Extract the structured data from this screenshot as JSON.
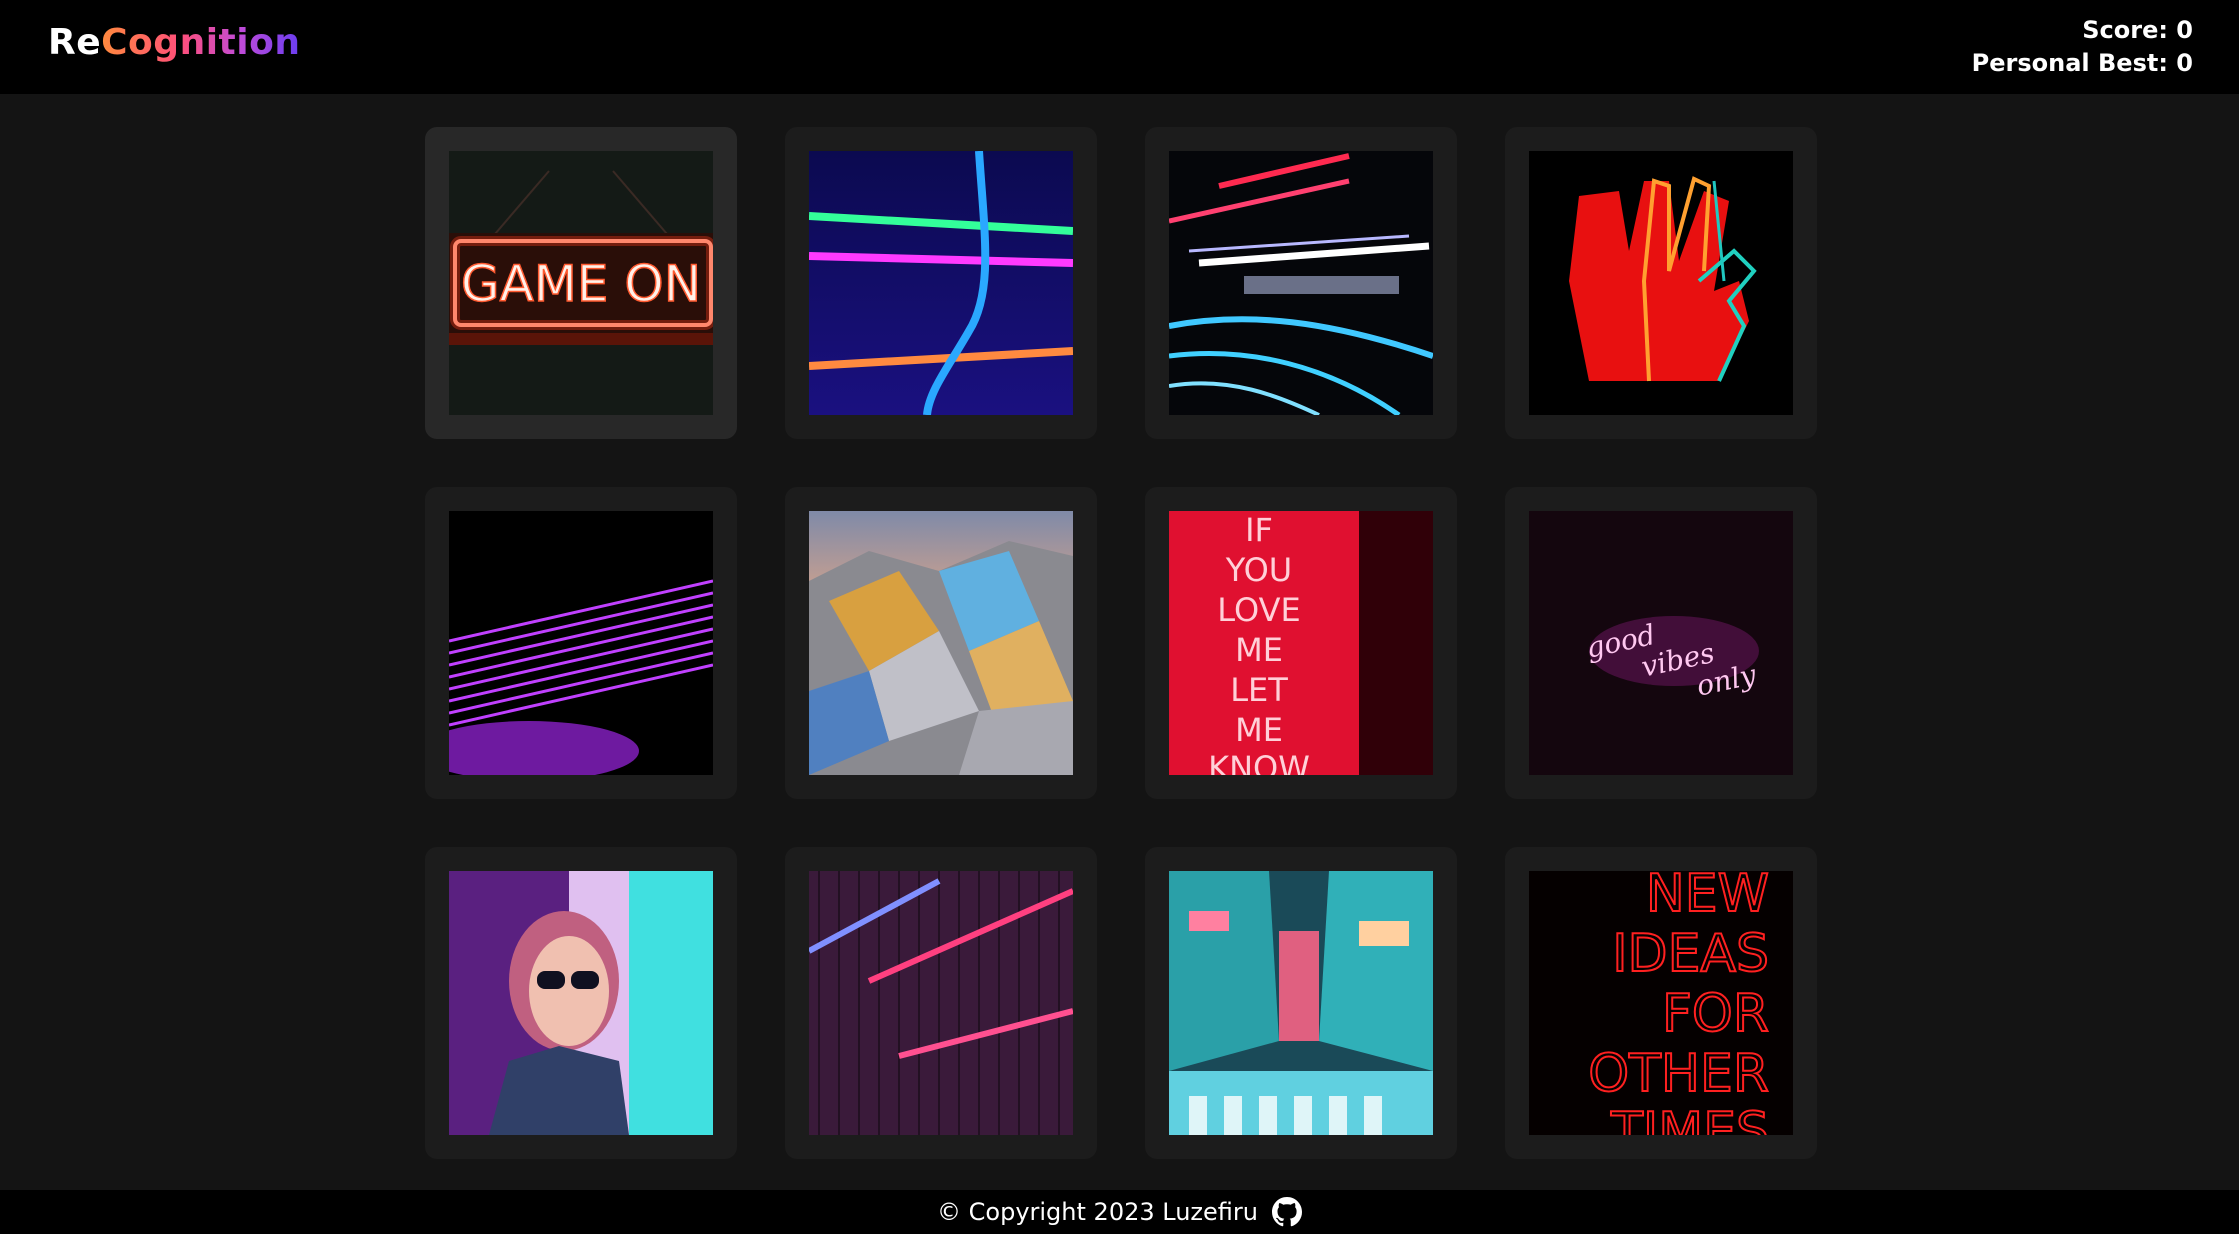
{
  "header": {
    "logo_prefix": "Re",
    "logo_suffix": "Cognition",
    "score_label": "Score: 0",
    "best_label": "Personal Best: 0"
  },
  "cards": [
    {
      "name": "game-on-neon-sign",
      "alt": "GAME ON"
    },
    {
      "name": "neon-tubes-lines",
      "alt": ""
    },
    {
      "name": "light-trails",
      "alt": ""
    },
    {
      "name": "neon-peace-hand",
      "alt": ""
    },
    {
      "name": "purple-light-streaks",
      "alt": ""
    },
    {
      "name": "holographic-foil",
      "alt": ""
    },
    {
      "name": "if-you-love-me-neon",
      "alt": "IF YOU LOVE ME LET ME KNOW"
    },
    {
      "name": "good-vibes-only-neon",
      "alt": "good vibes only"
    },
    {
      "name": "woman-neon-portrait",
      "alt": ""
    },
    {
      "name": "pink-blue-neon-wall",
      "alt": ""
    },
    {
      "name": "neon-city-street",
      "alt": ""
    },
    {
      "name": "new-ideas-neon",
      "alt": "NEW IDEAS FOR OTHER TIMES"
    }
  ],
  "footer": {
    "copyright": "© Copyright 2023 Luzefiru",
    "github_icon": "github-icon"
  },
  "colors": {
    "background": "#141414",
    "header": "#000000",
    "card": "#1c1c1c",
    "card_hover": "#282828"
  }
}
